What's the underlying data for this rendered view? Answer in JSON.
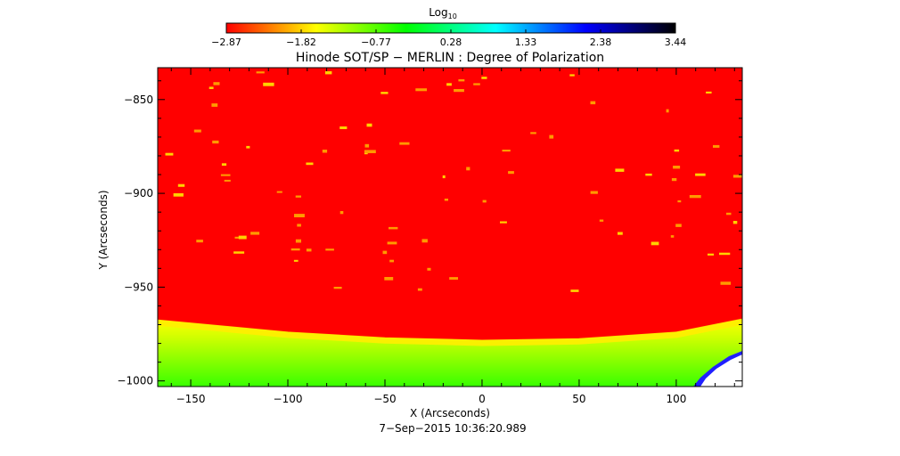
{
  "chart_data": {
    "type": "heatmap",
    "title": "Hinode SOT/SP − MERLIN : Degree of Polarization",
    "xlabel": "X (Arcseconds)",
    "ylabel": "Y (Arcseconds)",
    "date_label": "7−Sep−2015 10:36:20.989",
    "colorbar": {
      "label_base": "Log",
      "label_subscript": "10",
      "range": [
        -2.87,
        3.44
      ],
      "tick_labels": [
        "−2.87",
        "−1.82",
        "−0.77",
        "0.28",
        "1.33",
        "2.38",
        "3.44"
      ],
      "colors": [
        "#ff0000",
        "#ffff00",
        "#00ff00",
        "#00ffff",
        "#0000ff",
        "#000000"
      ]
    },
    "xlim": [
      -167,
      134
    ],
    "ylim": [
      -1003,
      -833
    ],
    "x_ticks": [
      {
        "value": -150,
        "label": "−150"
      },
      {
        "value": -100,
        "label": "−100"
      },
      {
        "value": -50,
        "label": "−50"
      },
      {
        "value": 0,
        "label": "0"
      },
      {
        "value": 50,
        "label": "50"
      },
      {
        "value": 100,
        "label": "100"
      }
    ],
    "y_ticks": [
      {
        "value": -850,
        "label": "−850"
      },
      {
        "value": -900,
        "label": "−900"
      },
      {
        "value": -950,
        "label": "−950"
      },
      {
        "value": -1000,
        "label": "−1000"
      }
    ],
    "limb": {
      "x": [
        -167,
        -100,
        -50,
        0,
        50,
        100,
        134
      ],
      "y": [
        -967.5,
        -974,
        -977,
        -978.3,
        -977.5,
        -974,
        -967
      ]
    },
    "on_disk_log10_value": -2.87,
    "off_disk_log10_value": -1.3
  }
}
